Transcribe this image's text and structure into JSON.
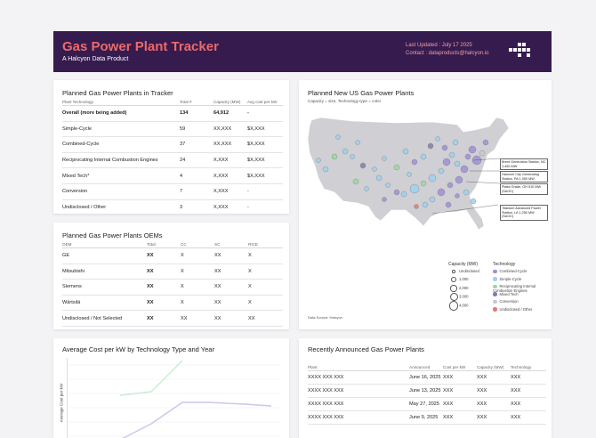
{
  "header": {
    "title": "Gas Power Plant Tracker",
    "subtitle": "A Halcyon Data Product",
    "updated": "Last Updated : July 17 2025",
    "contact": "Contact : dataproducts@halcyon.io"
  },
  "planned_table": {
    "title": "Planned Gas Power Plants in Tracker",
    "columns": [
      "Plant Technology",
      "Total #",
      "Capacity (MW)",
      "Avg cost per kW"
    ],
    "rows": [
      [
        "Overall (more being added)",
        "134",
        "64,912",
        "-"
      ],
      [
        "Simple-Cycle",
        "59",
        "XX,XXX",
        "$X,XXX"
      ],
      [
        "Combined-Cycle",
        "37",
        "XX,XXX",
        "$X,XXX"
      ],
      [
        "Reciprocating Internal Combustion Engines",
        "24",
        "X,XXX",
        "$X,XXX"
      ],
      [
        "Mixed Tech*",
        "4",
        "X,XXX",
        "$X,XXX"
      ],
      [
        "Conversion",
        "7",
        "X,XXX",
        "-"
      ],
      [
        "Undisclosed / Other",
        "3",
        "X,XXX",
        "-"
      ]
    ]
  },
  "oem_table": {
    "title": "Planned Gas Power Plants OEMs",
    "columns": [
      "OEM",
      "Total",
      "CC",
      "SC",
      "RICE"
    ],
    "rows": [
      [
        "GE",
        "XX",
        "X",
        "XX",
        "X"
      ],
      [
        "Mitsubishi",
        "XX",
        "X",
        "XX",
        "X"
      ],
      [
        "Siemens",
        "XX",
        "X",
        "XX",
        "X"
      ],
      [
        "Wärtsilä",
        "XX",
        "X",
        "XX",
        "X"
      ],
      [
        "Undisclosed / Not Selected",
        "XX",
        "XX",
        "XX",
        "XX"
      ]
    ]
  },
  "map": {
    "title": "Planned New US Gas Power Plants",
    "subtitle": "Capacity = size, Technology type = color",
    "source": "Data Source: Halcyon",
    "callouts": [
      "Brent Generation Station, NC 1,450 MW",
      "Hanover City Generating Station, PA 1,050 MW",
      "Platts Grade, OH 510 MW (SAOC)",
      "Titanium Advanced Power Station, LA 1,250 MW (SAOC)"
    ],
    "capacity_legend": {
      "title": "Capacity (MW)",
      "items": [
        "Undisclosed",
        "1,000",
        "2,000",
        "3,000",
        "4,000"
      ]
    },
    "tech_legend": {
      "title": "Technology",
      "items": [
        {
          "label": "Combined-Cycle",
          "color": "#a08fd6"
        },
        {
          "label": "Simple-Cycle",
          "color": "#9ed1ee"
        },
        {
          "label": "Reciprocating Internal Combustion Engines",
          "color": "#9dd89a"
        },
        {
          "label": "Mixed Tech",
          "color": "#8a7aa8"
        },
        {
          "label": "Conversion",
          "color": "#c8c8d0"
        },
        {
          "label": "Undisclosed / Other",
          "color": "#e07b72"
        }
      ]
    }
  },
  "cost_chart": {
    "title": "Average Cost per kW by Technology Type and Year",
    "ylabel": "Average Cost per kW"
  },
  "recent_table": {
    "title": "Recently Announced Gas Power Plants",
    "columns": [
      "Plant",
      "Announced",
      "Cost per kW",
      "Capacity (MW)",
      "Technology"
    ],
    "rows": [
      [
        "XXXX XXX XXX",
        "June 16, 2025",
        "XXX",
        "XXX",
        "XXX"
      ],
      [
        "XXXX XXX XXX",
        "June 13, 2025",
        "XXX",
        "XXX",
        "XXX"
      ],
      [
        "XXXX XXX XXX",
        "May 27, 2025",
        "XXX",
        "XXX",
        "XXX"
      ],
      [
        "XXXX XXX XXX",
        "June 9, 2025",
        "XXX",
        "XXX",
        "XXX"
      ]
    ]
  }
}
